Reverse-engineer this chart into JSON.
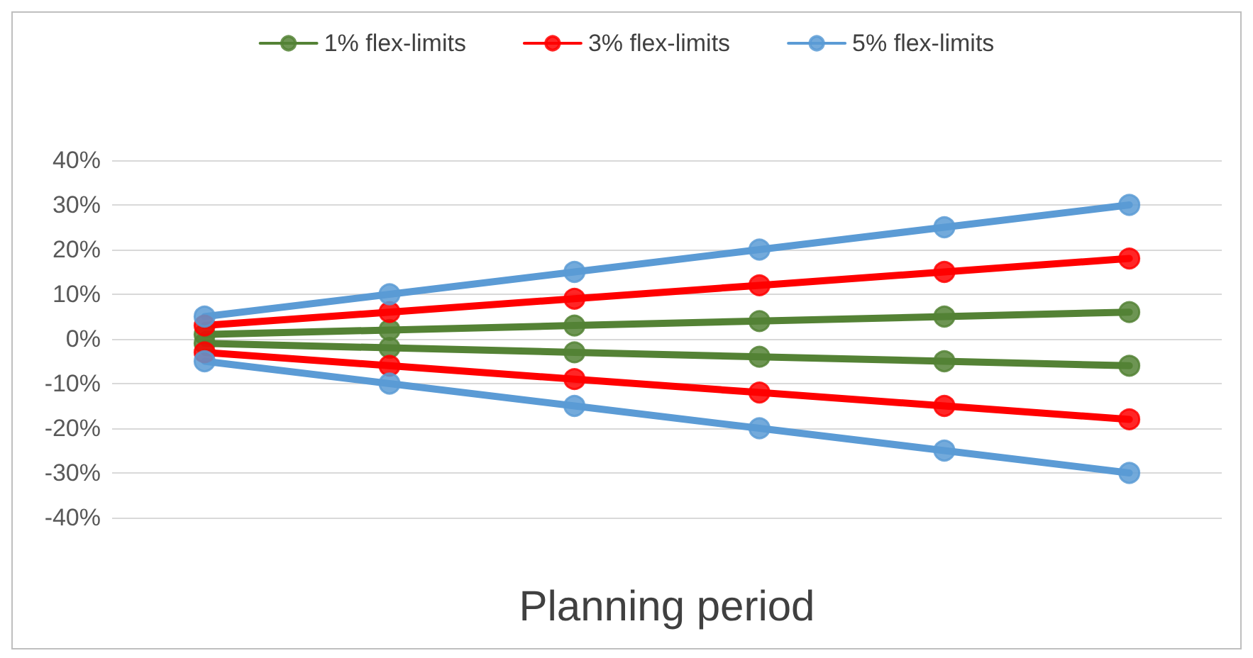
{
  "chart_data": {
    "type": "line",
    "xlabel": "Planning period",
    "categories": [
      null,
      null,
      null,
      null,
      null,
      null
    ],
    "series": [
      {
        "name": "1% flex-limits",
        "color": "#548235",
        "values": [
          1,
          2,
          3,
          4,
          5,
          6
        ]
      },
      {
        "color": "#548235",
        "values": [
          -1,
          -2,
          -3,
          -4,
          -5,
          -6
        ]
      },
      {
        "name": "3% flex-limits",
        "color": "#ff0000",
        "values": [
          3,
          6,
          9,
          12,
          15,
          18
        ]
      },
      {
        "color": "#ff0000",
        "values": [
          -3,
          -6,
          -9,
          -12,
          -15,
          -18
        ]
      },
      {
        "name": "5% flex-limits",
        "color": "#5b9bd5",
        "values": [
          5,
          10,
          15,
          20,
          25,
          30
        ]
      },
      {
        "color": "#5b9bd5",
        "values": [
          -5,
          -10,
          -15,
          -20,
          -25,
          -30
        ]
      }
    ],
    "ylim": [
      -40,
      40
    ],
    "yticks": [
      {
        "value": -40,
        "label": "-40%"
      },
      {
        "value": -30,
        "label": "-30%"
      },
      {
        "value": -20,
        "label": "-20%"
      },
      {
        "value": -10,
        "label": "-10%"
      },
      {
        "value": 0,
        "label": "0%"
      },
      {
        "value": 10,
        "label": "10%"
      },
      {
        "value": 20,
        "label": "20%"
      },
      {
        "value": 30,
        "label": "30%"
      },
      {
        "value": 40,
        "label": "40%"
      }
    ],
    "grid": "y",
    "legend": "top",
    "marker": "circle",
    "line_style": "solid"
  }
}
